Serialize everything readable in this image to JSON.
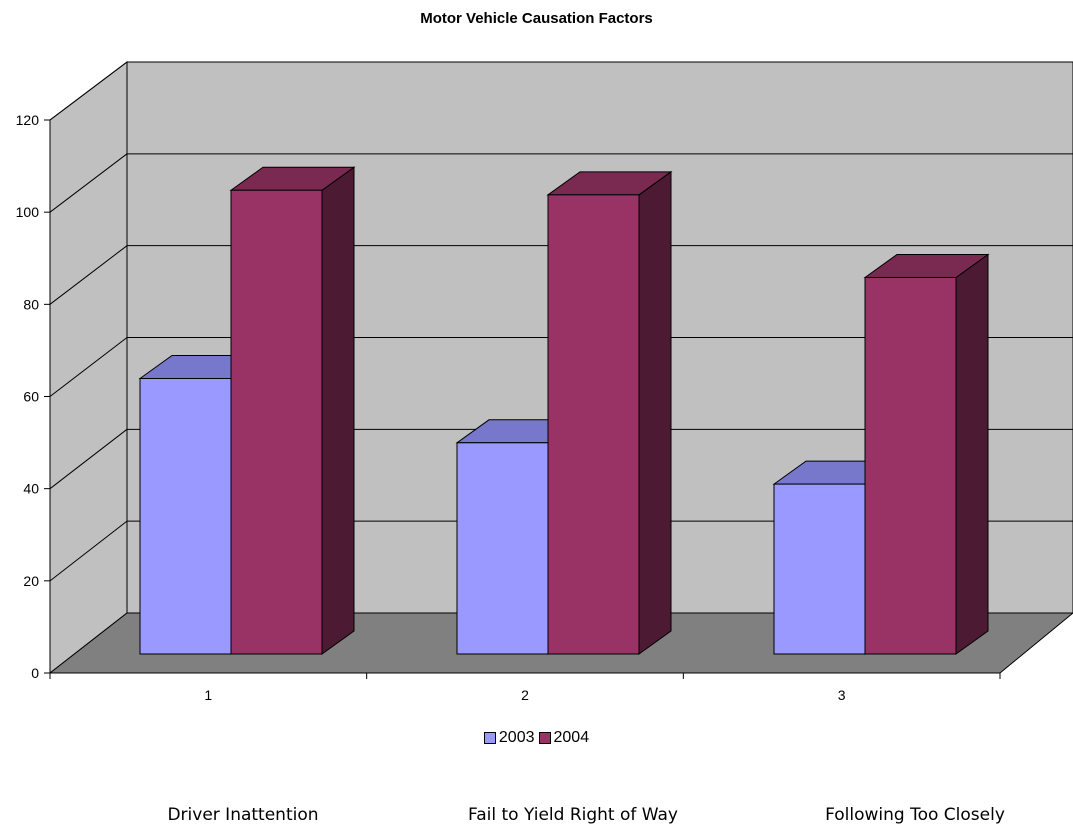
{
  "chart_data": {
    "type": "bar",
    "title": "Motor Vehicle Causation Factors",
    "categories": [
      "1",
      "2",
      "3"
    ],
    "category_names": [
      "Driver Inattention",
      "Fail to Yield Right of Way",
      "Following Too Closely"
    ],
    "series": [
      {
        "name": "2003",
        "values": [
          60,
          46,
          37
        ],
        "color": "#9999FF",
        "top_color": "#7777CC"
      },
      {
        "name": "2004",
        "values": [
          101,
          100,
          82
        ],
        "color": "#993366",
        "top_color": "#7A2951",
        "side_color": "#4D1A33"
      }
    ],
    "ylim": [
      0,
      120
    ],
    "yticks": [
      "0",
      "20",
      "40",
      "60",
      "80",
      "100",
      "120"
    ],
    "grid": true,
    "legend_position": "bottom",
    "wall_color": "#C0C0C0",
    "floor_color": "#808080"
  }
}
